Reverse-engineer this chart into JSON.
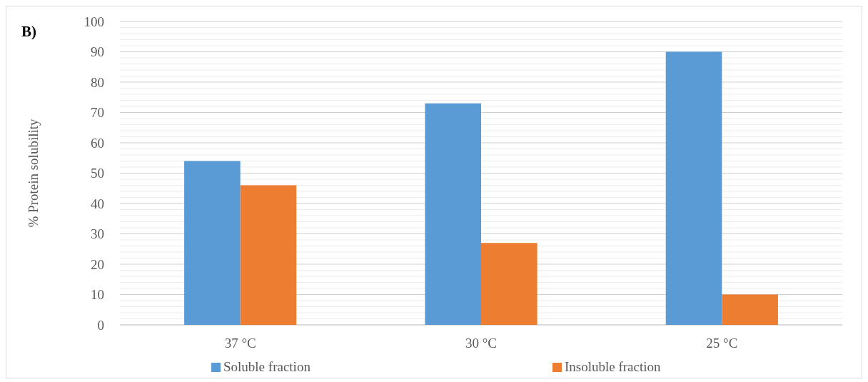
{
  "chart_data": {
    "type": "bar",
    "title": "B)",
    "ylabel": "% Protein solubility",
    "categories": [
      "37 °C",
      "30 °C",
      "25 °C"
    ],
    "series": [
      {
        "name": "Soluble fraction",
        "color": "#5b9bd5",
        "values": [
          54,
          73,
          90
        ]
      },
      {
        "name": "Insoluble fraction",
        "color": "#ed7d31",
        "values": [
          46,
          27,
          10
        ]
      }
    ],
    "ylim": [
      0,
      100
    ],
    "yticks": [
      0,
      {
        "value": 2,
        "label": null
      },
      {
        "value": 4,
        "label": null
      },
      {
        "value": 6,
        "label": null
      },
      {
        "value": 8,
        "label": null
      },
      10,
      {
        "value": 12,
        "label": null
      },
      {
        "value": 14,
        "label": null
      },
      {
        "value": 16,
        "label": null
      },
      {
        "value": 18,
        "label": null
      },
      20,
      {
        "value": 22,
        "label": null
      },
      {
        "value": 24,
        "label": null
      },
      {
        "value": 26,
        "label": null
      },
      {
        "value": 28,
        "label": null
      },
      30,
      {
        "value": 32,
        "label": null
      },
      {
        "value": 34,
        "label": null
      },
      {
        "value": 36,
        "label": null
      },
      {
        "value": 38,
        "label": null
      },
      40,
      {
        "value": 42,
        "label": null
      },
      {
        "value": 44,
        "label": null
      },
      {
        "value": 46,
        "label": null
      },
      {
        "value": 48,
        "label": null
      },
      50,
      {
        "value": 52,
        "label": null
      },
      {
        "value": 54,
        "label": null
      },
      {
        "value": 56,
        "label": null
      },
      {
        "value": 58,
        "label": null
      },
      60,
      {
        "value": 62,
        "label": null
      },
      {
        "value": 64,
        "label": null
      },
      {
        "value": 66,
        "label": null
      },
      {
        "value": 68,
        "label": null
      },
      70,
      {
        "value": 72,
        "label": null
      },
      {
        "value": 74,
        "label": null
      },
      {
        "value": 76,
        "label": null
      },
      {
        "value": 78,
        "label": null
      },
      80,
      {
        "value": 82,
        "label": null
      },
      {
        "value": 84,
        "label": null
      },
      {
        "value": 86,
        "label": null
      },
      {
        "value": 88,
        "label": null
      },
      90,
      {
        "value": 92,
        "label": null
      },
      {
        "value": 94,
        "label": null
      },
      {
        "value": 96,
        "label": null
      },
      {
        "value": 98,
        "label": null
      },
      100
    ],
    "grid": "y",
    "legend": "bottom"
  }
}
